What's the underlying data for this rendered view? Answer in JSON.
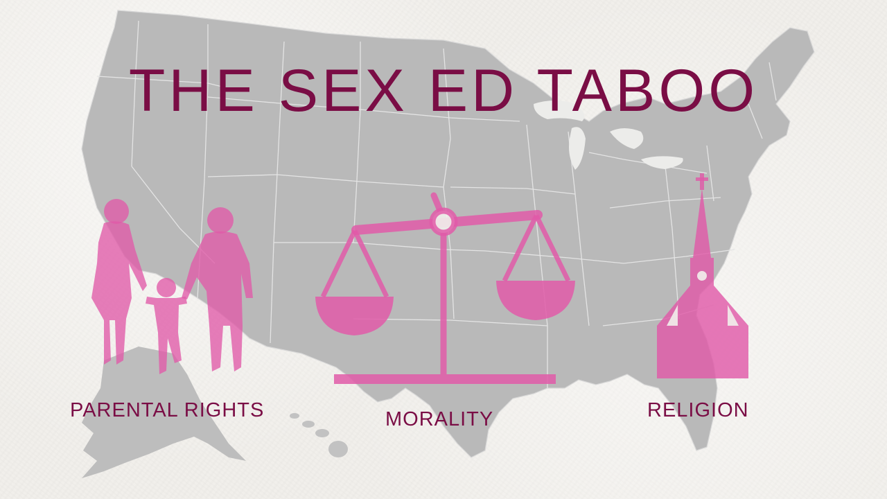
{
  "title": "THE SEX ED TABOO",
  "categories": [
    {
      "label": "PARENTAL RIGHTS",
      "icon": "family-icon"
    },
    {
      "label": "MORALITY",
      "icon": "scales-icon"
    },
    {
      "label": "RELIGION",
      "icon": "church-icon"
    }
  ],
  "colors": {
    "title_text": "#7a0d45",
    "icon_pink": "#e05aa8",
    "map_gray": "#b9b9b9",
    "background": "#f1efeb"
  }
}
